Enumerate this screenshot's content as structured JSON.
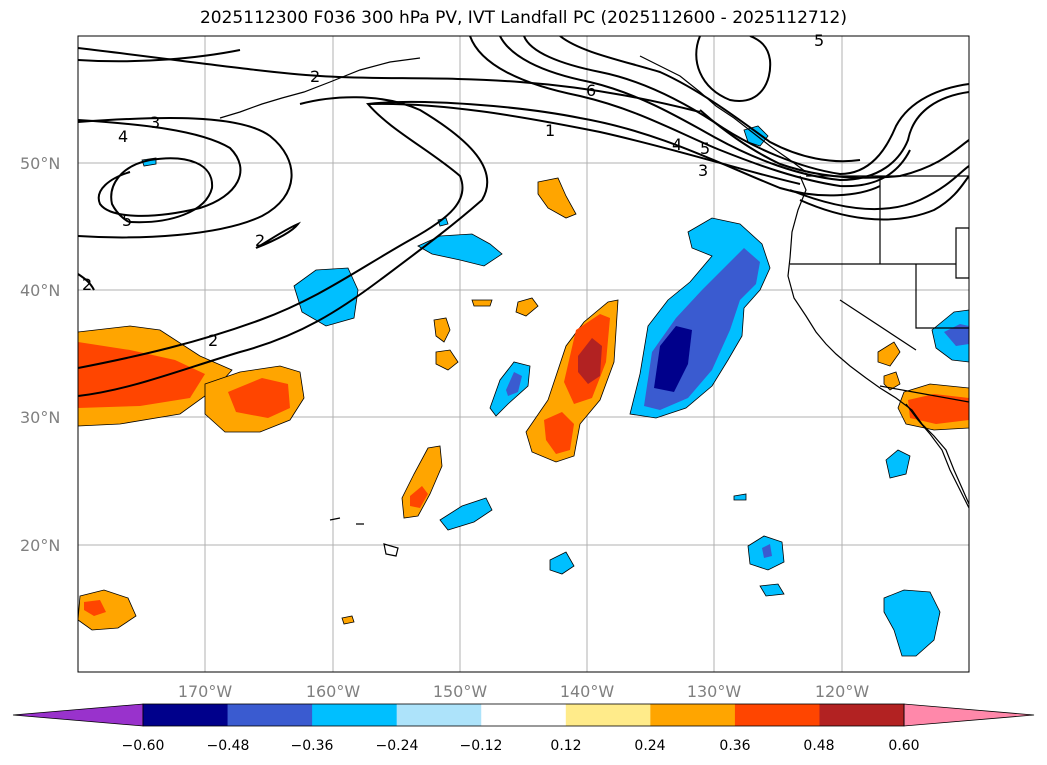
{
  "title": "2025112300 F036 300 hPa PV, IVT Landfall PC (2025112600 - 2025112712)",
  "map": {
    "projection": "PlateCarree",
    "lon_range": [
      -180,
      -110
    ],
    "lat_range": [
      10,
      60
    ],
    "lat_ticks": [
      {
        "value": 20,
        "label": "20°N"
      },
      {
        "value": 30,
        "label": "30°N"
      },
      {
        "value": 40,
        "label": "40°N"
      },
      {
        "value": 50,
        "label": "50°N"
      }
    ],
    "lon_ticks": [
      {
        "value": -170,
        "label": "170°W"
      },
      {
        "value": -160,
        "label": "160°W"
      },
      {
        "value": -150,
        "label": "150°W"
      },
      {
        "value": -140,
        "label": "140°W"
      },
      {
        "value": -130,
        "label": "130°W"
      },
      {
        "value": -120,
        "label": "120°W"
      }
    ],
    "gridlines": true,
    "pv_contour_labels": [
      "1",
      "2",
      "2",
      "2",
      "2",
      "3",
      "3",
      "4",
      "4",
      "5",
      "5",
      "6",
      "5"
    ]
  },
  "colorbar": {
    "ticks": [
      "−0.60",
      "−0.48",
      "−0.36",
      "−0.24",
      "−0.12",
      "0.12",
      "0.24",
      "0.36",
      "0.48",
      "0.60"
    ],
    "colors": [
      "#9932CC",
      "#00008B",
      "#3A5BD0",
      "#00BFFF",
      "#ADE3FA",
      "#FFFFFF",
      "#FFEB8A",
      "#FFA500",
      "#FF4500",
      "#B22222",
      "#FF88AA"
    ],
    "extend": "both"
  }
}
